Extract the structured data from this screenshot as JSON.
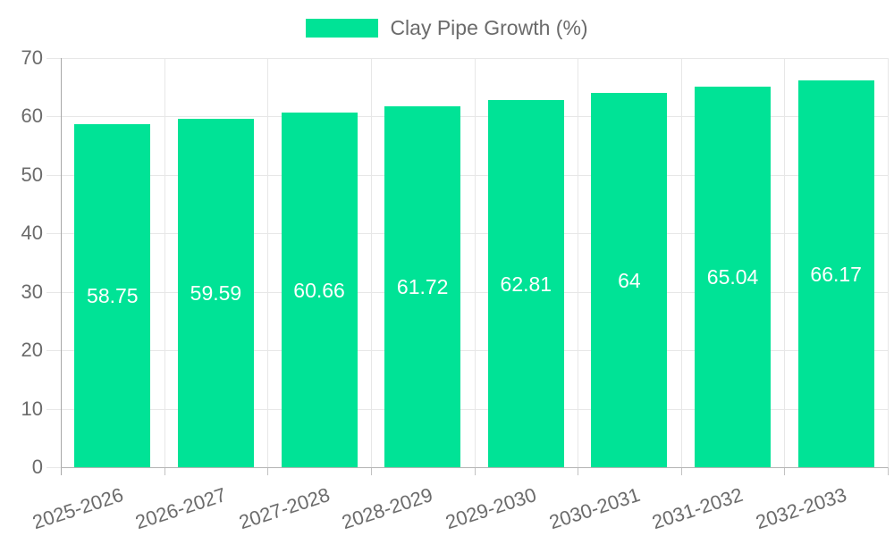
{
  "chart_data": {
    "type": "bar",
    "title": "",
    "xlabel": "",
    "ylabel": "",
    "categories": [
      "2025-2026",
      "2026-2027",
      "2027-2028",
      "2028-2029",
      "2029-2030",
      "2030-2031",
      "2031-2032",
      "2032-2033"
    ],
    "series": [
      {
        "name": "Clay Pipe Growth (%)",
        "values": [
          58.75,
          59.59,
          60.66,
          61.72,
          62.81,
          64,
          65.04,
          66.17
        ]
      }
    ],
    "value_labels": [
      "58.75",
      "59.59",
      "60.66",
      "61.72",
      "62.81",
      "64",
      "65.04",
      "66.17"
    ],
    "ylim": [
      0,
      70
    ],
    "ytick_step": 10,
    "ytick_labels": [
      "0",
      "10",
      "20",
      "30",
      "40",
      "50",
      "60",
      "70"
    ],
    "legend_position": "top",
    "grid": "on",
    "x_label_rotation_deg": -18,
    "colors": {
      "bar": "#00e396",
      "data_label": "#ffffff",
      "axis_text": "#6b6b6b",
      "grid_line": "#e7e7e7",
      "y_tick": "#dadada",
      "x_tick": "#c2c2c2",
      "y_axis_line": "#a8a8a8",
      "x_axis_line": "#b4b4b4",
      "background": "#ffffff"
    }
  }
}
